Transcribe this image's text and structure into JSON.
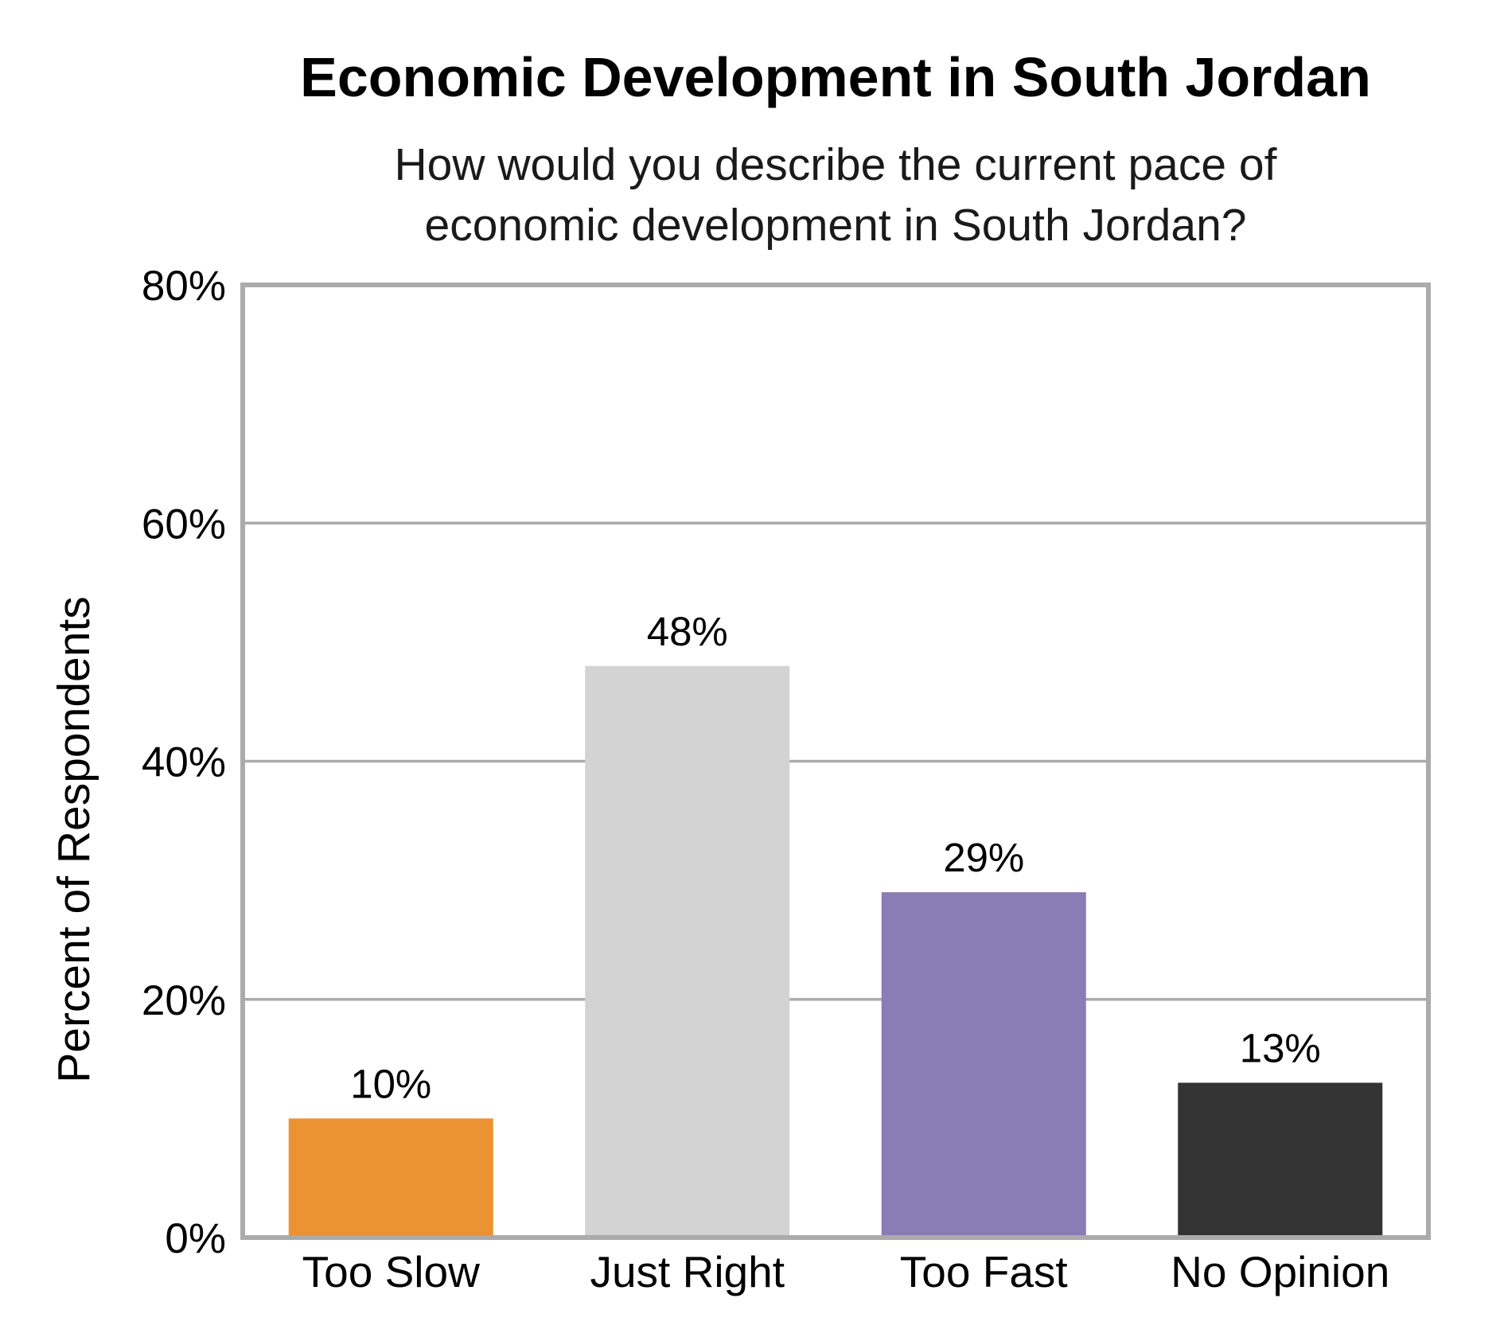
{
  "chart_data": {
    "type": "bar",
    "title": "Economic Development in South Jordan",
    "subtitle_lines": [
      "How would you describe the current pace of",
      "economic development in South Jordan?"
    ],
    "xlabel": "",
    "ylabel": "Percent of Respondents",
    "categories": [
      "Too Slow",
      "Just Right",
      "Too Fast",
      "No Opinion"
    ],
    "values": [
      10,
      48,
      29,
      13
    ],
    "value_labels": [
      "10%",
      "48%",
      "29%",
      "13%"
    ],
    "bar_colors": [
      "#EB9232",
      "#D3D3D3",
      "#8A7CB5",
      "#333333"
    ],
    "ylim": [
      0,
      80
    ],
    "yticks": [
      0,
      20,
      40,
      60,
      80
    ],
    "ytick_labels": [
      "0%",
      "20%",
      "40%",
      "60%",
      "80%"
    ],
    "grid": true,
    "legend": "none"
  }
}
